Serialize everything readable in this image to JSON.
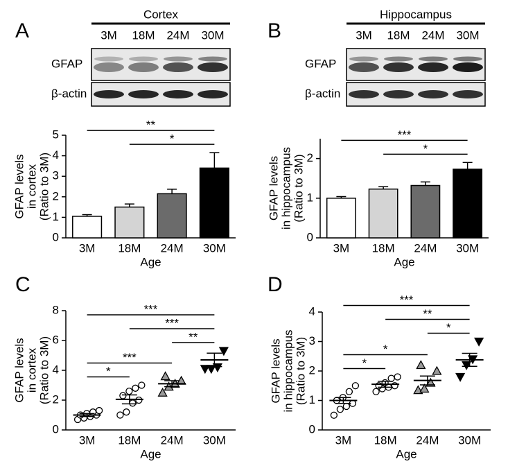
{
  "panel_labels": [
    "A",
    "B",
    "C",
    "D"
  ],
  "blots": [
    {
      "region": "Cortex",
      "lanes": [
        "3M",
        "18M",
        "24M",
        "30M"
      ],
      "rows": [
        "GFAP",
        "β-actin"
      ]
    },
    {
      "region": "Hippocampus",
      "lanes": [
        "3M",
        "18M",
        "24M",
        "30M"
      ],
      "rows": [
        "GFAP",
        "β-actin"
      ]
    }
  ],
  "chart_data": [
    {
      "type": "bar",
      "y_label": [
        "GFAP levels",
        "in cortex",
        "(Ratio to 3M)"
      ],
      "x_label": "Age",
      "categories": [
        "3M",
        "18M",
        "24M",
        "30M"
      ],
      "values": [
        1.05,
        1.5,
        2.15,
        3.4
      ],
      "errors": [
        0.08,
        0.15,
        0.22,
        0.75
      ],
      "colors": [
        "#ffffff",
        "#d4d4d4",
        "#6b6b6b",
        "#000000"
      ],
      "ylim": [
        0,
        5
      ],
      "yticks": [
        0,
        1,
        2,
        3,
        4,
        5
      ],
      "annotations": [
        {
          "from": "18M",
          "to": "30M",
          "label": "*"
        },
        {
          "from": "3M",
          "to": "30M",
          "label": "**"
        }
      ]
    },
    {
      "type": "bar",
      "y_label": [
        "GFAP levels",
        "in hippocampus",
        "(Ratio to 3M)"
      ],
      "x_label": "Age",
      "categories": [
        "3M",
        "18M",
        "24M",
        "30M"
      ],
      "values": [
        1.0,
        1.23,
        1.32,
        1.73
      ],
      "errors": [
        0.04,
        0.06,
        0.09,
        0.17
      ],
      "colors": [
        "#ffffff",
        "#d4d4d4",
        "#6b6b6b",
        "#000000"
      ],
      "ylim": [
        0,
        2.5
      ],
      "yticks": [
        0,
        1,
        2
      ],
      "annotations": [
        {
          "from": "18M",
          "to": "30M",
          "label": "*"
        },
        {
          "from": "3M",
          "to": "30M",
          "label": "***"
        }
      ]
    },
    {
      "type": "scatter",
      "y_label": [
        "GFAP levels",
        "in cortex",
        "(Ratio to 3M)"
      ],
      "x_label": "Age",
      "categories": [
        "3M",
        "18M",
        "24M",
        "30M"
      ],
      "points": [
        [
          0.7,
          0.8,
          0.9,
          1.0,
          1.0,
          1.1,
          1.2,
          1.3
        ],
        [
          1.0,
          1.2,
          1.8,
          2.0,
          2.3,
          2.6,
          2.8,
          3.0
        ],
        [
          2.5,
          2.9,
          3.1,
          3.3,
          3.6
        ],
        [
          4.1,
          4.1,
          4.2,
          5.3
        ]
      ],
      "means": [
        1.0,
        2.05,
        3.1,
        4.7
      ],
      "sems": [
        0.1,
        0.3,
        0.2,
        0.45
      ],
      "markers": [
        "circle",
        "circle",
        "triangle",
        "triangle-down"
      ],
      "marker_colors": [
        "#ffffff",
        "#ffffff",
        "#999999",
        "#000000"
      ],
      "ylim": [
        0,
        8
      ],
      "yticks": [
        0,
        2,
        4,
        6,
        8
      ],
      "annotations": [
        {
          "from": "3M",
          "to": "18M",
          "label": "*"
        },
        {
          "from": "3M",
          "to": "24M",
          "label": "***"
        },
        {
          "from": "24M",
          "to": "30M",
          "label": "**"
        },
        {
          "from": "18M",
          "to": "30M",
          "label": "***"
        },
        {
          "from": "3M",
          "to": "30M",
          "label": "***"
        }
      ]
    },
    {
      "type": "scatter",
      "y_label": [
        "GFAP levels",
        "in hippocampus",
        "(Ratio to 3M)"
      ],
      "x_label": "Age",
      "categories": [
        "3M",
        "18M",
        "24M",
        "30M"
      ],
      "points": [
        [
          0.5,
          0.7,
          0.8,
          0.9,
          1.0,
          1.1,
          1.3,
          1.5
        ],
        [
          1.3,
          1.4,
          1.45,
          1.5,
          1.5,
          1.6,
          1.75,
          1.8
        ],
        [
          1.35,
          1.4,
          1.6,
          2.0,
          2.2
        ],
        [
          1.8,
          2.2,
          2.4,
          3.0
        ]
      ],
      "means": [
        1.0,
        1.55,
        1.68,
        2.38
      ],
      "sems": [
        0.1,
        0.1,
        0.15,
        0.22
      ],
      "markers": [
        "circle",
        "circle",
        "triangle",
        "triangle-down"
      ],
      "marker_colors": [
        "#ffffff",
        "#ffffff",
        "#999999",
        "#000000"
      ],
      "ylim": [
        0,
        4
      ],
      "yticks": [
        0,
        1,
        2,
        3,
        4
      ],
      "annotations": [
        {
          "from": "3M",
          "to": "18M",
          "label": "*"
        },
        {
          "from": "3M",
          "to": "24M",
          "label": "*"
        },
        {
          "from": "24M",
          "to": "30M",
          "label": "*"
        },
        {
          "from": "18M",
          "to": "30M",
          "label": "**"
        },
        {
          "from": "3M",
          "to": "30M",
          "label": "***"
        }
      ]
    }
  ]
}
